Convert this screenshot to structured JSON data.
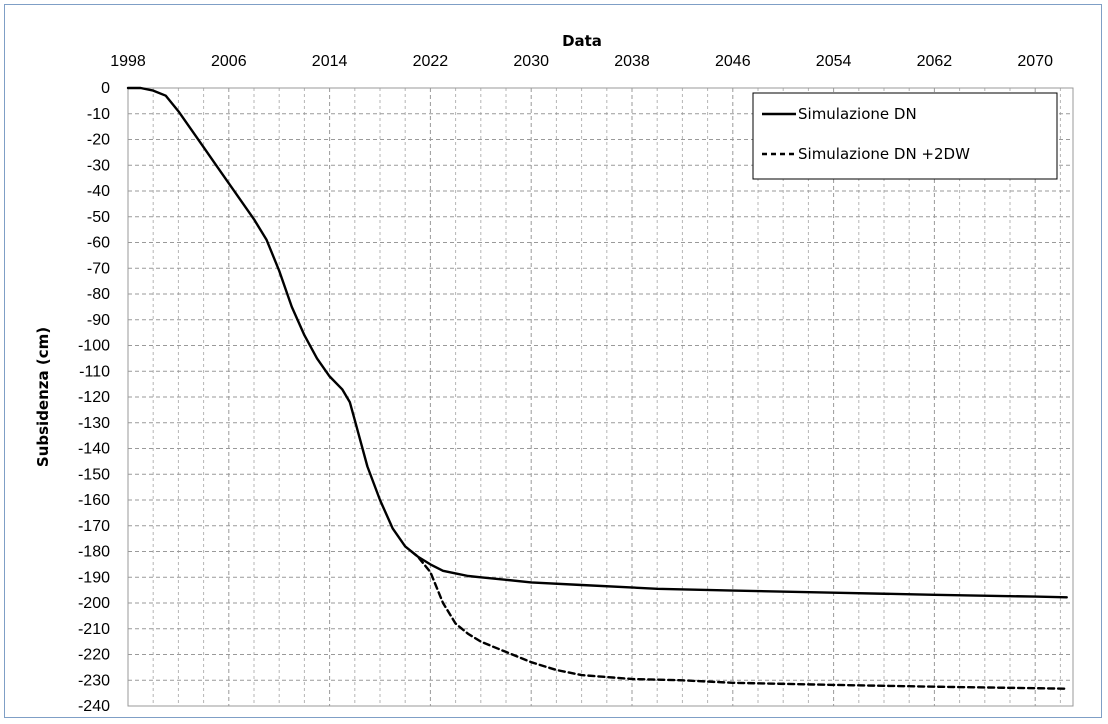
{
  "chart_data": {
    "type": "line",
    "xlabel": "Data",
    "ylabel": "Subsidenza (cm)",
    "xlim": [
      1998,
      2073
    ],
    "ylim": [
      -240,
      0
    ],
    "x_ticks": [
      1998,
      2006,
      2014,
      2022,
      2030,
      2038,
      2046,
      2054,
      2062,
      2070
    ],
    "y_ticks": [
      0,
      -10,
      -20,
      -30,
      -40,
      -50,
      -60,
      -70,
      -80,
      -90,
      -100,
      -110,
      -120,
      -130,
      -140,
      -150,
      -160,
      -170,
      -180,
      -190,
      -200,
      -210,
      -220,
      -230,
      -240
    ],
    "x_axis_position": "top",
    "grid": true,
    "legend": {
      "position": "top-right"
    },
    "series": [
      {
        "name": "Simulazione DN",
        "line_style": "solid",
        "color": "#000000",
        "x": [
          1998,
          1999,
          2000,
          2001,
          2002,
          2003,
          2004,
          2005,
          2006,
          2007,
          2008,
          2009,
          2010,
          2011,
          2012,
          2013,
          2014,
          2015,
          2015.6,
          2016,
          2017,
          2018,
          2019,
          2020,
          2021,
          2022,
          2023,
          2024,
          2025,
          2026,
          2028,
          2030,
          2034,
          2040,
          2046,
          2054,
          2062,
          2070,
          2072.5
        ],
        "y": [
          0,
          0,
          -1,
          -3,
          -9,
          -16,
          -23,
          -30,
          -37,
          -44,
          -51,
          -59,
          -71,
          -85,
          -96,
          -105,
          -112,
          -117,
          -122,
          -129,
          -147,
          -160,
          -171,
          -178,
          -182,
          -185,
          -187.5,
          -188.5,
          -189.5,
          -190,
          -191,
          -192,
          -193,
          -194.5,
          -195.2,
          -196,
          -196.8,
          -197.5,
          -197.8
        ]
      },
      {
        "name": "Simulazione DN +2DW",
        "line_style": "dashed",
        "color": "#000000",
        "x": [
          2020.5,
          2021,
          2022,
          2023,
          2024,
          2025,
          2026,
          2027,
          2028,
          2030,
          2032,
          2034,
          2038,
          2042,
          2046,
          2054,
          2062,
          2070,
          2072.5
        ],
        "y": [
          -180,
          -182,
          -188,
          -200,
          -208,
          -212,
          -215,
          -217,
          -219,
          -223,
          -226,
          -228,
          -229.5,
          -230,
          -231,
          -231.8,
          -232.5,
          -233.1,
          -233.3
        ]
      }
    ]
  }
}
